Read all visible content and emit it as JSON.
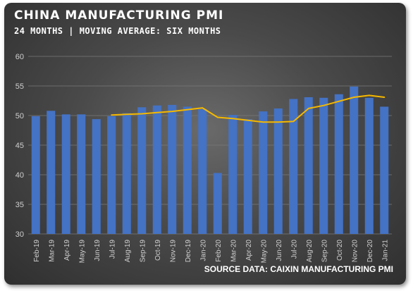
{
  "chart_data": {
    "type": "bar",
    "title": "CHINA MANUFACTURING PMI",
    "subtitle": "24 MONTHS | MOVING AVERAGE: SIX MONTHS",
    "source": "SOURCE DATA: CAIXIN MANUFACTURING PMI",
    "categories": [
      "Feb-19",
      "Mar-19",
      "Apr-19",
      "May-19",
      "Jun-19",
      "Jul-19",
      "Aug-19",
      "Sep-19",
      "Oct-19",
      "Nov-19",
      "Dec-19",
      "Jan-20",
      "Feb-20",
      "Mar-20",
      "Apr-20",
      "May-20",
      "Jun-20",
      "Jul-20",
      "Aug-20",
      "Sep-20",
      "Oct-20",
      "Nov-20",
      "Dec-20",
      "Jan-21"
    ],
    "series": [
      {
        "type": "bar",
        "values": [
          49.9,
          50.8,
          50.2,
          50.2,
          49.4,
          49.9,
          50.4,
          51.4,
          51.7,
          51.8,
          51.5,
          51.1,
          40.3,
          50.1,
          49.4,
          50.7,
          51.2,
          52.8,
          53.1,
          53.0,
          53.6,
          54.9,
          53.0,
          51.5
        ]
      },
      {
        "type": "line",
        "values": [
          null,
          null,
          null,
          null,
          null,
          50.1,
          50.2,
          50.3,
          50.5,
          50.7,
          51.0,
          51.3,
          49.7,
          49.5,
          49.2,
          48.9,
          48.9,
          49.0,
          51.2,
          51.7,
          52.4,
          53.1,
          53.4,
          53.1
        ]
      }
    ],
    "ylim": [
      30,
      60
    ],
    "yticks": [
      30,
      35,
      40,
      45,
      50,
      55,
      60
    ],
    "grid": true,
    "colors": {
      "bar": "#4472c4",
      "line": "#f5b800",
      "grid": "#7a7a7a",
      "text": "#d0d0d0"
    }
  }
}
